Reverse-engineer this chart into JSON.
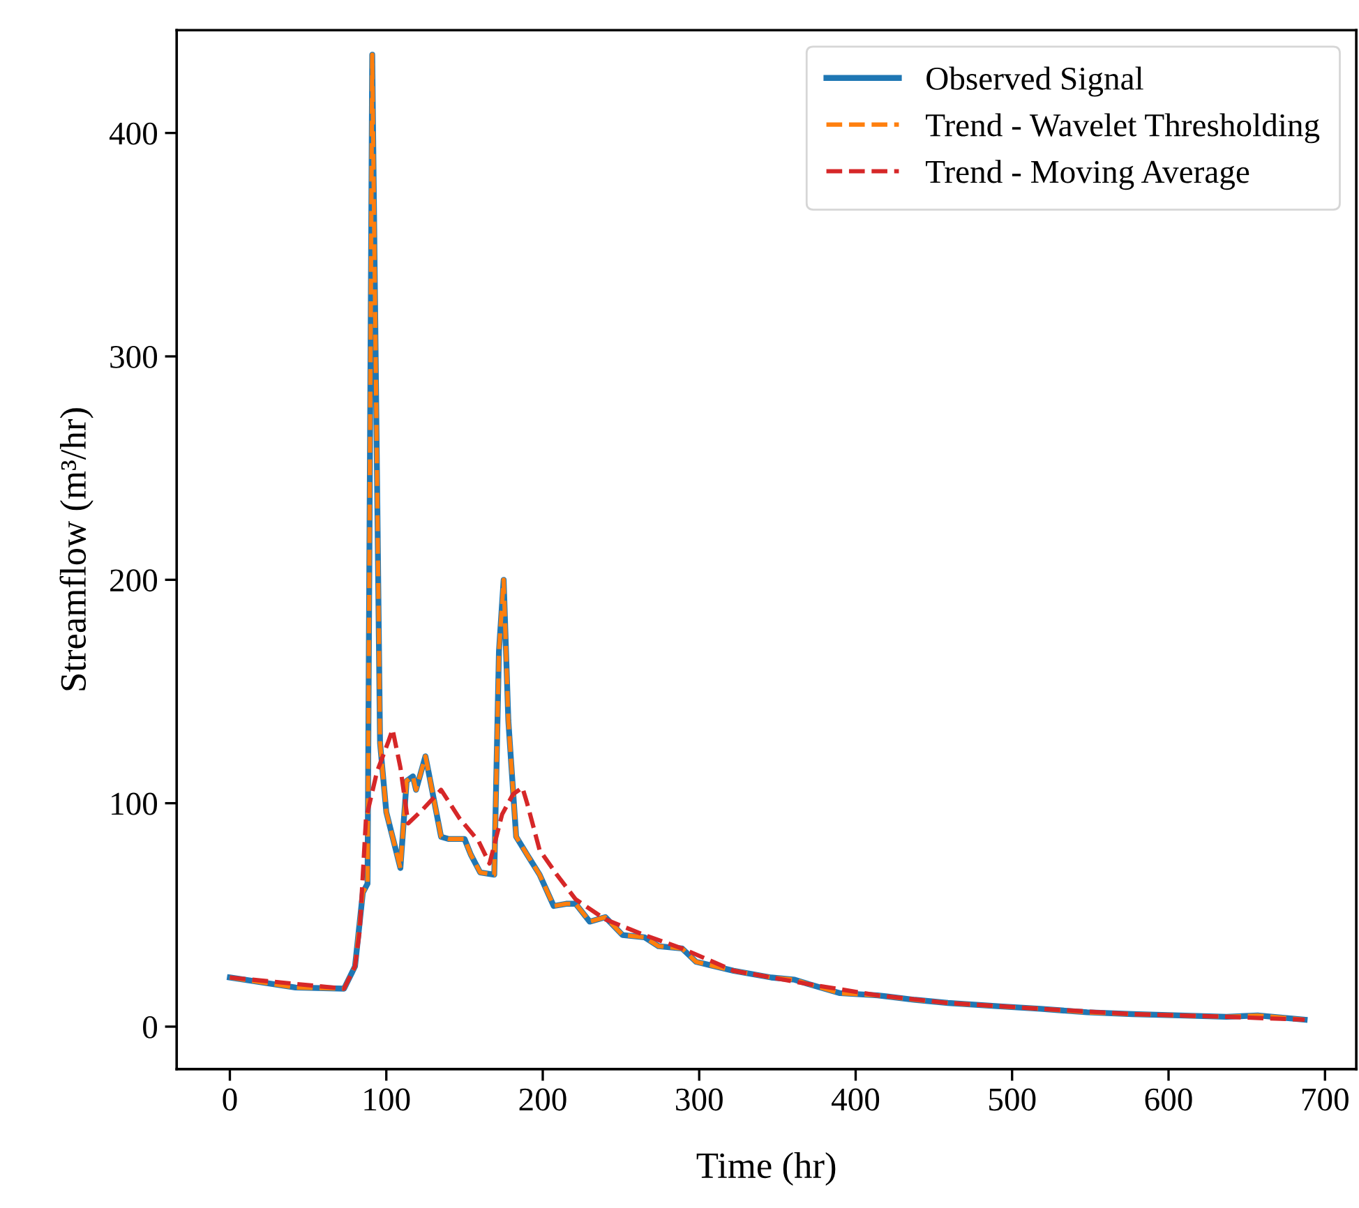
{
  "chart_data": {
    "type": "line",
    "xlabel": "Time (hr)",
    "ylabel": "Streamflow (m³/hr)",
    "xlim": [
      -34,
      720
    ],
    "ylim": [
      -19,
      446
    ],
    "xticks": [
      0,
      100,
      200,
      300,
      400,
      500,
      600,
      700
    ],
    "yticks": [
      0,
      100,
      200,
      300,
      400
    ],
    "grid": false,
    "legend": "top right",
    "marker": "none",
    "series": [
      {
        "name": "Observed Signal",
        "color": "#1f77b4",
        "line_style": "solid",
        "x": [
          0,
          42,
          73,
          80,
          85,
          88,
          91,
          96,
          100,
          109,
          113,
          117,
          119,
          125,
          127,
          135,
          140,
          150,
          154,
          160,
          169,
          172,
          175,
          178,
          183,
          190,
          198,
          207,
          215,
          221,
          230,
          240,
          251,
          265,
          274,
          289,
          298,
          322,
          346,
          361,
          370,
          390,
          414,
          438,
          459,
          494,
          518,
          548,
          577,
          607,
          637,
          657,
          687
        ],
        "values": [
          22,
          17.5,
          17,
          27,
          60,
          64,
          435,
          127,
          96,
          71,
          110,
          112,
          106,
          121,
          114,
          85,
          84,
          84,
          77,
          69,
          68,
          168,
          200,
          137,
          85,
          77,
          68,
          54,
          55,
          55,
          47,
          49,
          41,
          40,
          36,
          35,
          29,
          25,
          22,
          21,
          19,
          15,
          14,
          12,
          10.6,
          9,
          8,
          6.4,
          5.6,
          5,
          4.4,
          5,
          3.1
        ]
      },
      {
        "name": "Trend - Wavelet Thresholding",
        "color": "#ff7f0e",
        "line_style": "dashed",
        "x": [
          0,
          42,
          73,
          80,
          85,
          88,
          91,
          96,
          100,
          109,
          113,
          117,
          119,
          125,
          127,
          135,
          140,
          150,
          154,
          160,
          169,
          172,
          175,
          178,
          183,
          190,
          198,
          207,
          215,
          221,
          230,
          240,
          251,
          265,
          274,
          289,
          298,
          322,
          346,
          361,
          370,
          390,
          414,
          438,
          459,
          494,
          518,
          548,
          577,
          607,
          637,
          657,
          687
        ],
        "values": [
          22,
          17.5,
          17,
          27,
          60,
          64,
          435,
          127,
          96,
          71,
          110,
          112,
          106,
          121,
          114,
          85,
          84,
          84,
          77,
          69,
          68,
          168,
          200,
          137,
          85,
          77,
          68,
          54,
          55,
          55,
          47,
          49,
          41,
          40,
          36,
          35,
          29,
          25,
          22,
          21,
          19,
          15,
          14,
          12,
          10.6,
          9,
          8,
          6.4,
          5.6,
          5,
          4.4,
          5,
          3.1
        ]
      },
      {
        "name": "Trend - Moving Average",
        "color": "#d62728",
        "line_style": "dashed",
        "x": [
          0,
          73,
          80,
          83,
          87,
          94,
          101,
          104,
          109,
          114,
          123,
          135,
          147,
          159,
          166,
          174,
          181,
          187,
          190,
          198,
          209,
          221,
          240,
          265,
          289,
          322,
          346,
          370,
          414,
          459,
          518,
          577,
          637,
          687
        ],
        "values": [
          22,
          17,
          27,
          43,
          93,
          114,
          127,
          133,
          116,
          91,
          97,
          106,
          93,
          83,
          73,
          95,
          104,
          107,
          100,
          79,
          68,
          57,
          48,
          41,
          35,
          25,
          22,
          19,
          14,
          10.6,
          8,
          5.6,
          4.4,
          3.1
        ]
      }
    ]
  }
}
